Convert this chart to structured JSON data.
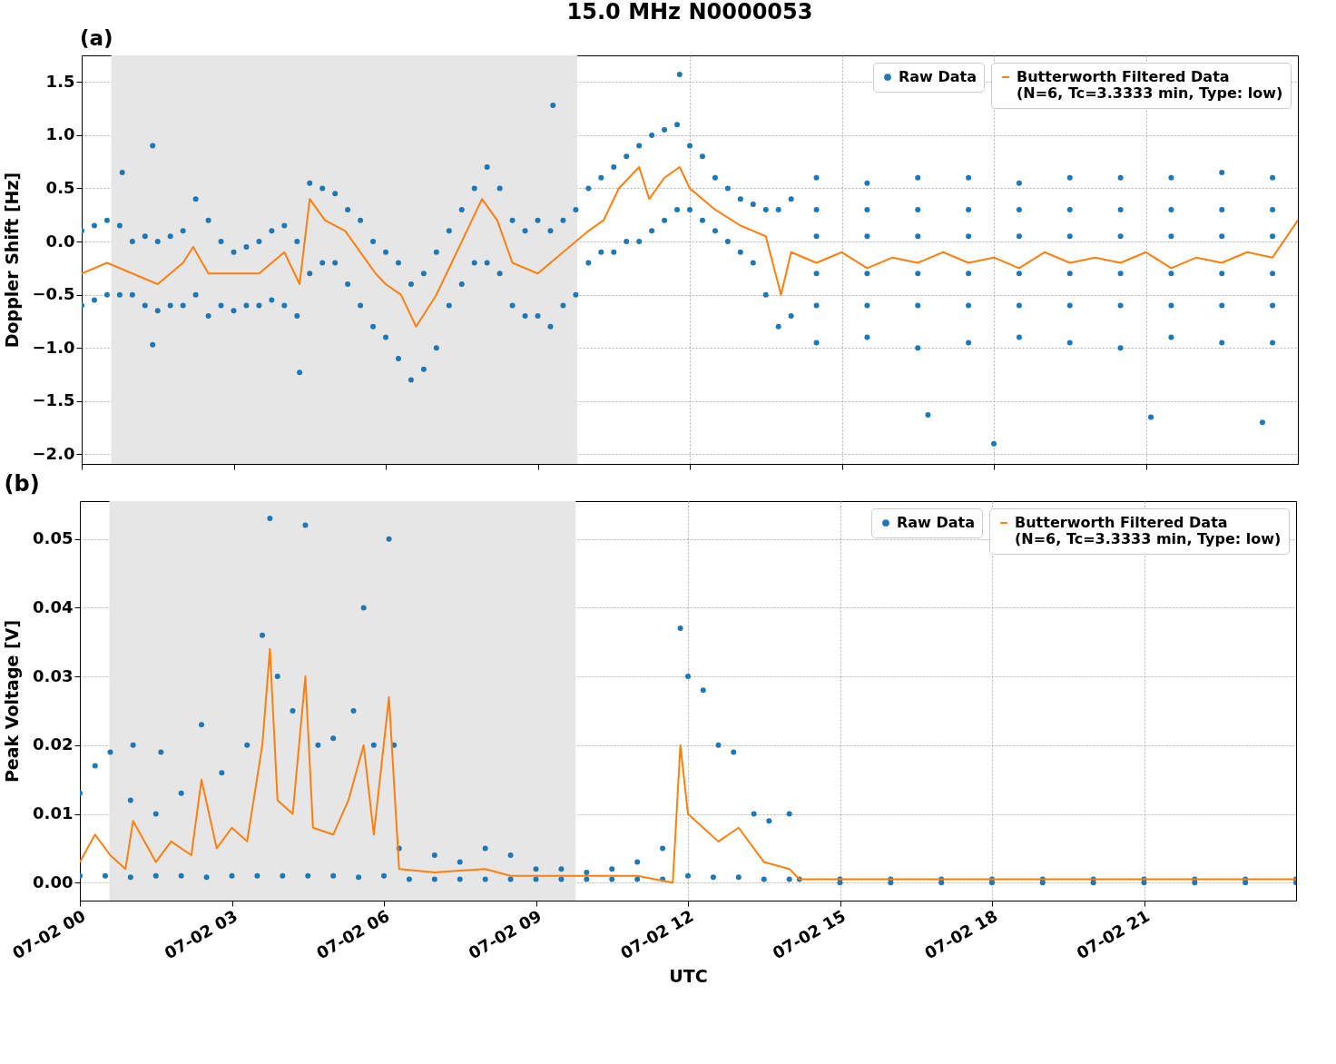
{
  "chart_data": [
    {
      "type": "scatter",
      "title": "15.0 MHz N0000053",
      "annotations": [
        "(a)"
      ],
      "ylabel": "Doppler Shift [Hz]",
      "xlim": [
        "--07-02T00:00",
        "--07-03T00:00"
      ],
      "xticks": [
        "--07-02T00:00",
        "--07-02T03:00",
        "--07-02T06:00",
        "--07-02T09:00",
        "--07-02T12:00",
        "--07-02T15:00",
        "--07-02T18:00",
        "--07-02T21:00"
      ],
      "ylim": [
        -2.09,
        1.75
      ],
      "yticks": [
        {
          "value": -2,
          "label": "−2.0"
        },
        {
          "value": -1.5,
          "label": "−1.5"
        },
        {
          "value": -1,
          "label": "−1.0"
        },
        {
          "value": -0.5,
          "label": "−0.5"
        },
        {
          "value": 0,
          "label": "0.0"
        },
        0.5,
        {
          "value": 1,
          "label": "1.0"
        },
        1.5
      ],
      "tick_labels": "y",
      "grid": true,
      "legend": "top right",
      "bands": [
        {
          "axis": "x",
          "from": "--07-02T00:35",
          "to": "--07-02T09:47",
          "color": "#e6e6e6"
        }
      ],
      "series": [
        {
          "name": "Raw Data",
          "type": "scatter",
          "marker": "circle",
          "color": "#1f77b4",
          "x": [
            "--07-02T00:00",
            "--07-02T00:00",
            "--07-02T00:15",
            "--07-02T00:15",
            "--07-02T00:30",
            "--07-02T00:30",
            "--07-02T00:45",
            "--07-02T00:45",
            "--07-02T01:00",
            "--07-02T01:00",
            "--07-02T01:15",
            "--07-02T01:15",
            "--07-02T01:30",
            "--07-02T01:30",
            "--07-02T01:45",
            "--07-02T01:45",
            "--07-02T02:00",
            "--07-02T02:00",
            "--07-02T02:15",
            "--07-02T02:15",
            "--07-02T02:30",
            "--07-02T02:30",
            "--07-02T02:45",
            "--07-02T02:45",
            "--07-02T03:00",
            "--07-02T03:00",
            "--07-02T03:15",
            "--07-02T03:15",
            "--07-02T03:30",
            "--07-02T03:30",
            "--07-02T03:45",
            "--07-02T03:45",
            "--07-02T04:00",
            "--07-02T04:00",
            "--07-02T04:15",
            "--07-02T04:15",
            "--07-02T04:30",
            "--07-02T04:30",
            "--07-02T04:45",
            "--07-02T04:45",
            "--07-02T05:00",
            "--07-02T05:00",
            "--07-02T05:15",
            "--07-02T05:15",
            "--07-02T05:30",
            "--07-02T05:30",
            "--07-02T05:45",
            "--07-02T05:45",
            "--07-02T06:00",
            "--07-02T06:00",
            "--07-02T06:15",
            "--07-02T06:15",
            "--07-02T06:30",
            "--07-02T06:30",
            "--07-02T06:45",
            "--07-02T06:45",
            "--07-02T07:00",
            "--07-02T07:00",
            "--07-02T07:15",
            "--07-02T07:15",
            "--07-02T07:30",
            "--07-02T07:30",
            "--07-02T07:45",
            "--07-02T07:45",
            "--07-02T08:00",
            "--07-02T08:00",
            "--07-02T08:15",
            "--07-02T08:15",
            "--07-02T08:30",
            "--07-02T08:30",
            "--07-02T08:45",
            "--07-02T08:45",
            "--07-02T09:00",
            "--07-02T09:00",
            "--07-02T09:15",
            "--07-02T09:15",
            "--07-02T09:30",
            "--07-02T09:30",
            "--07-02T09:45",
            "--07-02T09:45",
            "--07-02T10:00",
            "--07-02T10:00",
            "--07-02T10:15",
            "--07-02T10:15",
            "--07-02T10:30",
            "--07-02T10:30",
            "--07-02T10:45",
            "--07-02T10:45",
            "--07-02T11:00",
            "--07-02T11:00",
            "--07-02T11:15",
            "--07-02T11:15",
            "--07-02T11:30",
            "--07-02T11:30",
            "--07-02T11:45",
            "--07-02T11:45",
            "--07-02T12:00",
            "--07-02T12:00",
            "--07-02T12:15",
            "--07-02T12:15",
            "--07-02T12:30",
            "--07-02T12:30",
            "--07-02T12:45",
            "--07-02T12:45",
            "--07-02T13:00",
            "--07-02T13:00",
            "--07-02T13:15",
            "--07-02T13:15",
            "--07-02T13:30",
            "--07-02T13:30",
            "--07-02T13:45",
            "--07-02T13:45",
            "--07-02T14:00",
            "--07-02T14:00",
            "--07-02T14:30",
            "--07-02T14:30",
            "--07-02T14:30",
            "--07-02T14:30",
            "--07-02T14:30",
            "--07-02T14:30",
            "--07-02T15:30",
            "--07-02T15:30",
            "--07-02T15:30",
            "--07-02T15:30",
            "--07-02T15:30",
            "--07-02T15:30",
            "--07-02T16:30",
            "--07-02T16:30",
            "--07-02T16:30",
            "--07-02T16:30",
            "--07-02T16:30",
            "--07-02T16:30",
            "--07-02T17:30",
            "--07-02T17:30",
            "--07-02T17:30",
            "--07-02T17:30",
            "--07-02T17:30",
            "--07-02T17:30",
            "--07-02T18:30",
            "--07-02T18:30",
            "--07-02T18:30",
            "--07-02T18:30",
            "--07-02T18:30",
            "--07-02T18:30",
            "--07-02T19:30",
            "--07-02T19:30",
            "--07-02T19:30",
            "--07-02T19:30",
            "--07-02T19:30",
            "--07-02T19:30",
            "--07-02T20:30",
            "--07-02T20:30",
            "--07-02T20:30",
            "--07-02T20:30",
            "--07-02T20:30",
            "--07-02T20:30",
            "--07-02T21:30",
            "--07-02T21:30",
            "--07-02T21:30",
            "--07-02T21:30",
            "--07-02T21:30",
            "--07-02T21:30",
            "--07-02T22:30",
            "--07-02T22:30",
            "--07-02T22:30",
            "--07-02T22:30",
            "--07-02T22:30",
            "--07-02T22:30",
            "--07-02T23:30",
            "--07-02T23:30",
            "--07-02T23:30",
            "--07-02T23:30",
            "--07-02T23:30",
            "--07-02T23:30",
            "--07-02T00:48",
            "--07-02T01:24",
            "--07-02T01:24",
            "--07-02T04:18",
            "--07-02T09:18",
            "--07-02T11:48",
            "--07-02T16:42",
            "--07-02T18:00",
            "--07-02T21:06",
            "--07-02T23:18"
          ],
          "values": [
            0.1,
            -0.6,
            0.15,
            -0.55,
            0.2,
            -0.5,
            0.15,
            -0.5,
            0,
            -0.5,
            0.05,
            -0.6,
            0,
            -0.65,
            0.05,
            -0.6,
            0.1,
            -0.6,
            0.4,
            -0.5,
            0.2,
            -0.7,
            0,
            -0.6,
            -0.1,
            -0.65,
            -0.05,
            -0.6,
            0,
            -0.6,
            0.1,
            -0.55,
            0.15,
            -0.6,
            0,
            -0.7,
            0.55,
            -0.3,
            0.5,
            -0.2,
            0.45,
            -0.2,
            0.3,
            -0.4,
            0.2,
            -0.6,
            0,
            -0.8,
            -0.1,
            -0.9,
            -0.2,
            -1.1,
            -0.4,
            -1.3,
            -0.3,
            -1.2,
            -0.1,
            -1,
            0.1,
            -0.6,
            0.3,
            -0.4,
            0.5,
            -0.2,
            0.7,
            -0.2,
            0.5,
            -0.3,
            0.2,
            -0.6,
            0.1,
            -0.7,
            0.2,
            -0.7,
            0.1,
            -0.8,
            0.2,
            -0.6,
            0.3,
            -0.5,
            0.5,
            -0.2,
            0.6,
            -0.1,
            0.7,
            -0.1,
            0.8,
            0,
            0.9,
            0,
            1,
            0.1,
            1.05,
            0.2,
            1.1,
            0.3,
            0.9,
            0.3,
            0.8,
            0.2,
            0.6,
            0.1,
            0.5,
            0,
            0.4,
            -0.1,
            0.35,
            -0.2,
            0.3,
            -0.5,
            0.3,
            -0.8,
            0.4,
            -0.7,
            0.6,
            0.3,
            0.05,
            -0.3,
            -0.6,
            -0.95,
            0.55,
            0.3,
            0.05,
            -0.3,
            -0.6,
            -0.9,
            0.6,
            0.3,
            0.05,
            -0.3,
            -0.6,
            -1,
            0.6,
            0.3,
            0.05,
            -0.3,
            -0.6,
            -0.95,
            0.55,
            0.3,
            0.05,
            -0.3,
            -0.6,
            -0.9,
            0.6,
            0.3,
            0.05,
            -0.3,
            -0.6,
            -0.95,
            0.6,
            0.3,
            0.05,
            -0.3,
            -0.6,
            -1,
            0.6,
            0.3,
            0.05,
            -0.3,
            -0.6,
            -0.9,
            0.65,
            0.3,
            0.05,
            -0.3,
            -0.6,
            -0.95,
            0.6,
            0.3,
            0.05,
            -0.3,
            -0.6,
            -0.95,
            0.65,
            0.9,
            -0.97,
            -1.23,
            1.28,
            1.57,
            -1.63,
            -1.9,
            -1.65,
            -1.7
          ]
        },
        {
          "name": "Butterworth Filtered Data\n(N=6, Tc=3.3333 min, Type: low)",
          "type": "line",
          "color": "#ff7f0e",
          "x": [
            "--07-02T00:00",
            "--07-02T00:30",
            "--07-02T01:00",
            "--07-02T01:30",
            "--07-02T02:00",
            "--07-02T02:12",
            "--07-02T02:30",
            "--07-02T03:00",
            "--07-02T03:30",
            "--07-02T04:00",
            "--07-02T04:18",
            "--07-02T04:30",
            "--07-02T04:48",
            "--07-02T05:12",
            "--07-02T05:30",
            "--07-02T05:48",
            "--07-02T06:00",
            "--07-02T06:18",
            "--07-02T06:36",
            "--07-02T07:00",
            "--07-02T07:18",
            "--07-02T07:36",
            "--07-02T07:54",
            "--07-02T08:12",
            "--07-02T08:30",
            "--07-02T09:00",
            "--07-02T09:30",
            "--07-02T10:00",
            "--07-02T10:18",
            "--07-02T10:36",
            "--07-02T11:00",
            "--07-02T11:12",
            "--07-02T11:30",
            "--07-02T11:48",
            "--07-02T12:00",
            "--07-02T12:30",
            "--07-02T13:00",
            "--07-02T13:30",
            "--07-02T13:48",
            "--07-02T14:00",
            "--07-02T14:30",
            "--07-02T15:00",
            "--07-02T15:30",
            "--07-02T16:00",
            "--07-02T16:30",
            "--07-02T17:00",
            "--07-02T17:30",
            "--07-02T18:00",
            "--07-02T18:30",
            "--07-02T19:00",
            "--07-02T19:30",
            "--07-02T20:00",
            "--07-02T20:30",
            "--07-02T21:00",
            "--07-02T21:30",
            "--07-02T22:00",
            "--07-02T22:30",
            "--07-02T23:00",
            "--07-02T23:30",
            "--07-03T00:00"
          ],
          "values": [
            -0.3,
            -0.2,
            -0.3,
            -0.4,
            -0.2,
            -0.05,
            -0.3,
            -0.3,
            -0.3,
            -0.1,
            -0.4,
            0.4,
            0.2,
            0.1,
            -0.1,
            -0.3,
            -0.4,
            -0.5,
            -0.8,
            -0.5,
            -0.2,
            0.1,
            0.4,
            0.2,
            -0.2,
            -0.3,
            -0.1,
            0.1,
            0.2,
            0.5,
            0.7,
            0.4,
            0.6,
            0.7,
            0.5,
            0.3,
            0.15,
            0.05,
            -0.5,
            -0.1,
            -0.2,
            -0.1,
            -0.25,
            -0.15,
            -0.2,
            -0.1,
            -0.2,
            -0.15,
            -0.25,
            -0.1,
            -0.2,
            -0.15,
            -0.2,
            -0.1,
            -0.25,
            -0.15,
            -0.2,
            -0.1,
            -0.15,
            0.2
          ]
        }
      ]
    },
    {
      "type": "scatter",
      "title": "(b)",
      "xlabel": "UTC",
      "ylabel": "Peak Voltage [V]",
      "xlim": [
        "--07-02T00:00",
        "--07-03T00:00"
      ],
      "xticks": [
        {
          "value": "--07-02T00:00",
          "label": "07-02 00"
        },
        {
          "value": "--07-02T03:00",
          "label": "07-02 03"
        },
        {
          "value": "--07-02T06:00",
          "label": "07-02 06"
        },
        {
          "value": "--07-02T09:00",
          "label": "07-02 09"
        },
        {
          "value": "--07-02T12:00",
          "label": "07-02 12"
        },
        {
          "value": "--07-02T15:00",
          "label": "07-02 15"
        },
        {
          "value": "--07-02T18:00",
          "label": "07-02 18"
        },
        {
          "value": "--07-02T21:00",
          "label": "07-02 21"
        }
      ],
      "ylim": [
        -0.0026,
        0.0555
      ],
      "yticks": [
        {
          "value": 0,
          "label": "0.00"
        },
        0.01,
        0.02,
        0.03,
        0.04,
        0.05
      ],
      "grid": true,
      "legend": "top right",
      "bands": [
        {
          "axis": "x",
          "from": "--07-02T00:35",
          "to": "--07-02T09:47",
          "color": "#e6e6e6"
        }
      ],
      "series": [
        {
          "name": "Raw Data",
          "type": "scatter",
          "marker": "circle",
          "color": "#1f77b4",
          "x": [
            "--07-02T00:00",
            "--07-02T00:18",
            "--07-02T00:36",
            "--07-02T01:00",
            "--07-02T01:03",
            "--07-02T01:30",
            "--07-02T01:36",
            "--07-02T02:00",
            "--07-02T02:24",
            "--07-02T02:48",
            "--07-02T03:18",
            "--07-02T03:36",
            "--07-02T03:45",
            "--07-02T03:54",
            "--07-02T04:12",
            "--07-02T04:27",
            "--07-02T04:42",
            "--07-02T05:00",
            "--07-02T05:24",
            "--07-02T05:36",
            "--07-02T05:48",
            "--07-02T06:06",
            "--07-02T06:12",
            "--07-02T06:18",
            "--07-02T07:00",
            "--07-02T07:30",
            "--07-02T08:00",
            "--07-02T08:30",
            "--07-02T09:00",
            "--07-02T09:30",
            "--07-02T10:00",
            "--07-02T10:30",
            "--07-02T11:00",
            "--07-02T11:30",
            "--07-02T11:51",
            "--07-02T12:00",
            "--07-02T12:18",
            "--07-02T12:36",
            "--07-02T12:54",
            "--07-02T13:18",
            "--07-02T13:36",
            "--07-02T14:00",
            "--07-02T14:12",
            "--07-02T00:00",
            "--07-02T00:30",
            "--07-02T01:00",
            "--07-02T01:30",
            "--07-02T02:00",
            "--07-02T02:30",
            "--07-02T03:00",
            "--07-02T03:30",
            "--07-02T04:00",
            "--07-02T04:30",
            "--07-02T05:00",
            "--07-02T05:30",
            "--07-02T06:00",
            "--07-02T06:30",
            "--07-02T07:00",
            "--07-02T07:30",
            "--07-02T08:00",
            "--07-02T08:30",
            "--07-02T09:00",
            "--07-02T09:30",
            "--07-02T10:00",
            "--07-02T10:30",
            "--07-02T11:00",
            "--07-02T11:30",
            "--07-02T12:00",
            "--07-02T12:30",
            "--07-02T13:00",
            "--07-02T13:30",
            "--07-02T14:00",
            "--07-02T15:00",
            "--07-02T16:00",
            "--07-02T17:00",
            "--07-02T18:00",
            "--07-02T19:00",
            "--07-02T20:00",
            "--07-02T21:00",
            "--07-02T22:00",
            "--07-02T23:00",
            "--07-03T00:00",
            "--07-02T15:00",
            "--07-02T16:00",
            "--07-02T17:00",
            "--07-02T18:00",
            "--07-02T19:00",
            "--07-02T20:00",
            "--07-02T21:00",
            "--07-02T22:00",
            "--07-02T23:00",
            "--07-03T00:00"
          ],
          "values": [
            0.013,
            0.017,
            0.019,
            0.012,
            0.02,
            0.01,
            0.019,
            0.013,
            0.023,
            0.016,
            0.02,
            0.036,
            0.053,
            0.03,
            0.025,
            0.052,
            0.02,
            0.021,
            0.025,
            0.04,
            0.02,
            0.05,
            0.02,
            0.005,
            0.004,
            0.003,
            0.005,
            0.004,
            0.002,
            0.002,
            0.0015,
            0.002,
            0.003,
            0.005,
            0.037,
            0.03,
            0.028,
            0.02,
            0.019,
            0.01,
            0.009,
            0.01,
            0.0005,
            0.001,
            0.001,
            0.0008,
            0.001,
            0.001,
            0.0008,
            0.001,
            0.001,
            0.001,
            0.001,
            0.001,
            0.0008,
            0.001,
            0.0005,
            0.0005,
            0.0005,
            0.0005,
            0.0005,
            0.0005,
            0.0005,
            0.0005,
            0.0005,
            0.0005,
            0.0005,
            0.001,
            0.0008,
            0.0008,
            0.0005,
            0.0005,
            0.0005,
            0.0005,
            0.0005,
            0.0005,
            0.0005,
            0.0005,
            0.0005,
            0.0005,
            0.0005,
            0.0005,
            0,
            0,
            0,
            0,
            0,
            0,
            0,
            0,
            0,
            0
          ]
        },
        {
          "name": "Butterworth Filtered Data\n(N=6, Tc=3.3333 min, Type: low)",
          "type": "line",
          "color": "#ff7f0e",
          "x": [
            "--07-02T00:00",
            "--07-02T00:18",
            "--07-02T00:36",
            "--07-02T00:54",
            "--07-02T01:03",
            "--07-02T01:30",
            "--07-02T01:48",
            "--07-02T02:12",
            "--07-02T02:24",
            "--07-02T02:42",
            "--07-02T03:00",
            "--07-02T03:18",
            "--07-02T03:36",
            "--07-02T03:45",
            "--07-02T03:54",
            "--07-02T04:12",
            "--07-02T04:27",
            "--07-02T04:36",
            "--07-02T05:00",
            "--07-02T05:18",
            "--07-02T05:36",
            "--07-02T05:48",
            "--07-02T06:06",
            "--07-02T06:18",
            "--07-02T07:00",
            "--07-02T08:00",
            "--07-02T08:30",
            "--07-02T09:00",
            "--07-02T10:00",
            "--07-02T11:00",
            "--07-02T11:42",
            "--07-02T11:51",
            "--07-02T12:00",
            "--07-02T12:18",
            "--07-02T12:36",
            "--07-02T13:00",
            "--07-02T13:30",
            "--07-02T14:00",
            "--07-02T14:12",
            "--07-03T00:00"
          ],
          "values": [
            0.003,
            0.007,
            0.004,
            0.002,
            0.009,
            0.003,
            0.006,
            0.004,
            0.015,
            0.005,
            0.008,
            0.006,
            0.02,
            0.034,
            0.012,
            0.01,
            0.03,
            0.008,
            0.007,
            0.012,
            0.02,
            0.007,
            0.027,
            0.002,
            0.0015,
            0.002,
            0.001,
            0.001,
            0.001,
            0.001,
            0,
            0.02,
            0.01,
            0.008,
            0.006,
            0.008,
            0.003,
            0.002,
            0.0005,
            0.0005
          ]
        }
      ]
    }
  ]
}
